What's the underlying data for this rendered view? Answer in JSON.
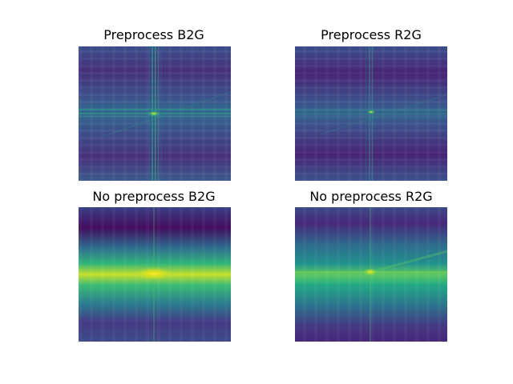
{
  "chart_data": [
    {
      "type": "heatmap",
      "title": "Preprocess B2G",
      "colormap": "viridis",
      "description_of_pattern": "dark field with bright cross of thin vertical and horizontal lines and a bright central peak",
      "peak_value": 1.0,
      "background_value": 0.12
    },
    {
      "type": "heatmap",
      "title": "Preprocess R2G",
      "colormap": "viridis",
      "description_of_pattern": "dark striped field with faint cross lines and small bright central peak",
      "peak_value": 0.8,
      "background_value": 0.1
    },
    {
      "type": "heatmap",
      "title": "No preprocess B2G",
      "colormap": "viridis",
      "description_of_pattern": "broad bright horizontal band across the center with peak at the center",
      "peak_value": 1.0,
      "background_value": 0.05
    },
    {
      "type": "heatmap",
      "title": "No preprocess R2G",
      "colormap": "viridis",
      "description_of_pattern": "broad teal horizontal band with bright green-yellow center line and peak",
      "peak_value": 0.85,
      "background_value": 0.08
    }
  ],
  "colors": {
    "viridis_dark": "#440154",
    "viridis_blue": "#3b528b",
    "viridis_teal": "#21918c",
    "viridis_green": "#5ec962",
    "viridis_yellow": "#fde725"
  }
}
